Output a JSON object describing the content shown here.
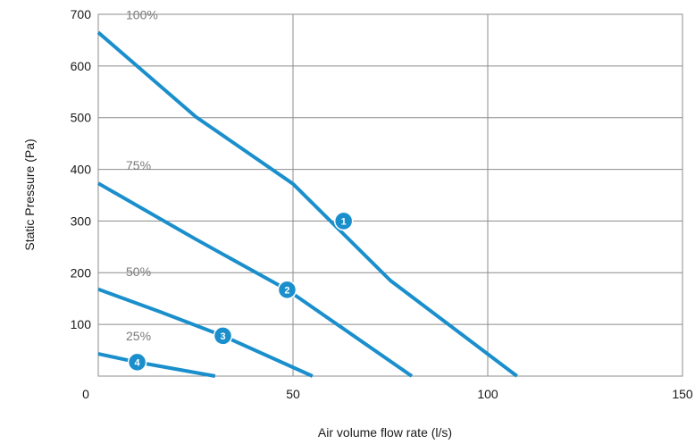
{
  "chart_data": {
    "type": "line",
    "xlabel": "Air volume flow rate (l/s)",
    "ylabel": "Static Pressure (Pa)",
    "xlim": [
      0,
      150
    ],
    "ylim": [
      0,
      700
    ],
    "x_ticks": [
      "0",
      "50",
      "100",
      "150"
    ],
    "y_ticks": [
      "100",
      "200",
      "300",
      "400",
      "500",
      "600",
      "700"
    ],
    "grid": true,
    "line_color": "#1a8fcc",
    "series": [
      {
        "name": "100%",
        "marker": "1",
        "marker_point": [
          63,
          300
        ],
        "points": [
          [
            0,
            665
          ],
          [
            25,
            502
          ],
          [
            50,
            372
          ],
          [
            75,
            185
          ],
          [
            107.5,
            0
          ]
        ]
      },
      {
        "name": "75%",
        "marker": "2",
        "marker_point": [
          48.5,
          167
        ],
        "points": [
          [
            0,
            373
          ],
          [
            25,
            265
          ],
          [
            48.5,
            167
          ],
          [
            80.5,
            0
          ]
        ]
      },
      {
        "name": "50%",
        "marker": "3",
        "marker_point": [
          32,
          78
        ],
        "points": [
          [
            0,
            168
          ],
          [
            16,
            124
          ],
          [
            32,
            78
          ],
          [
            55,
            0
          ]
        ]
      },
      {
        "name": "25%",
        "marker": "4",
        "marker_point": [
          10,
          27
        ],
        "points": [
          [
            0,
            43
          ],
          [
            10,
            27
          ],
          [
            30,
            0
          ]
        ]
      }
    ]
  }
}
